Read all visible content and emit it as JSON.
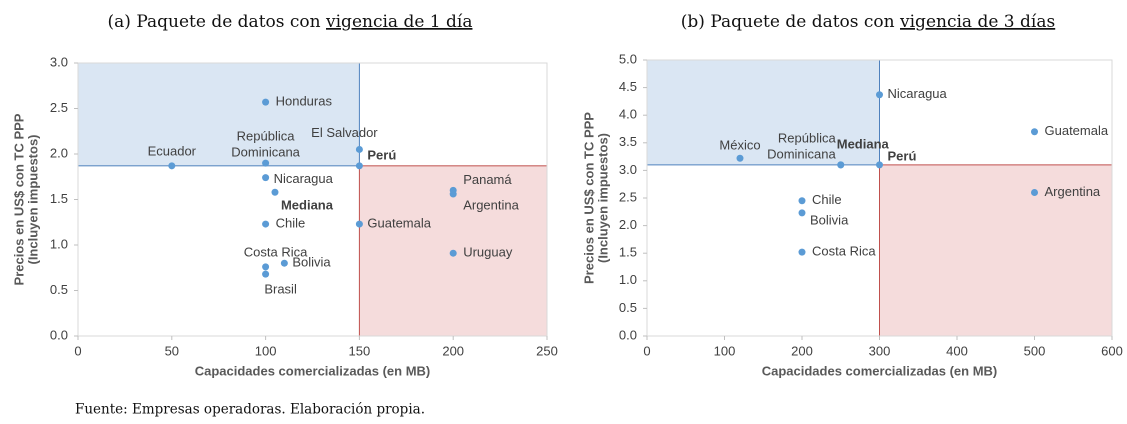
{
  "chart_data": [
    {
      "type": "scatter",
      "title": {
        "text": "(a) Paquete de datos con",
        "underlined": "vigencia de 1 día"
      },
      "xlabel": "Capacidades comercializadas (en MB)",
      "ylabel": [
        "Precios en US$ con TC PPP",
        "(Incluyen impuestos)"
      ],
      "xlim": [
        0,
        250
      ],
      "xticks": [
        0,
        50,
        100,
        150,
        200,
        250
      ],
      "ylim": [
        0,
        3.0
      ],
      "yticks": [
        {
          "value": 0,
          "label": "0.0"
        },
        0.5,
        {
          "value": 1,
          "label": "1.0"
        },
        1.5,
        {
          "value": 2,
          "label": "2.0"
        },
        2.5,
        {
          "value": 3,
          "label": "3.0"
        }
      ],
      "color": "#5b9bd5",
      "regions": [
        {
          "xlim": [
            0,
            150
          ],
          "ylim": [
            1.87,
            3.0
          ],
          "color": "#dae6f3",
          "stroke": "#4f81bd"
        },
        {
          "xlim": [
            150,
            250
          ],
          "ylim": [
            0,
            1.87
          ],
          "color": "#f5dcdc",
          "stroke": "#c0504d"
        }
      ],
      "points": [
        {
          "label": [
            "Ecuador"
          ],
          "x": 50,
          "y": 1.87
        },
        {
          "label": [
            "Honduras"
          ],
          "x": 100,
          "y": 2.57
        },
        {
          "label": [
            "República",
            "Dominicana"
          ],
          "x": 100,
          "y": 1.9
        },
        {
          "label": [
            "Nicaragua"
          ],
          "x": 100,
          "y": 1.74
        },
        {
          "label": [
            "Mediana"
          ],
          "x": 105,
          "y": 1.58,
          "label_color": "#1f77c4"
        },
        {
          "label": [
            "Chile"
          ],
          "x": 100,
          "y": 1.23
        },
        {
          "label": [
            "Costa Rica"
          ],
          "x": 100,
          "y": 0.76
        },
        {
          "label": [
            "Brasil"
          ],
          "x": 100,
          "y": 0.68
        },
        {
          "label": [
            "Bolivia"
          ],
          "x": 110,
          "y": 0.8
        },
        {
          "label": [
            "El Salvador"
          ],
          "x": 150,
          "y": 2.05
        },
        {
          "label": [
            "Perú"
          ],
          "x": 150,
          "y": 1.87,
          "label_color": "#c00000"
        },
        {
          "label": [
            "Guatemala"
          ],
          "x": 150,
          "y": 1.23
        },
        {
          "label": [
            "Panamá"
          ],
          "x": 200,
          "y": 1.6
        },
        {
          "label": [
            "Argentina"
          ],
          "x": 200,
          "y": 1.56
        },
        {
          "label": [
            "Uruguay"
          ],
          "x": 200,
          "y": 0.91
        }
      ]
    },
    {
      "type": "scatter",
      "title": {
        "text": "(b) Paquete de datos con",
        "underlined": "vigencia de 3 días"
      },
      "xlabel": "Capacidades comercializadas (en MB)",
      "ylabel": [
        "Precios en US$ con TC PPP",
        "(Incluyen impuestos)"
      ],
      "xlim": [
        0,
        600
      ],
      "xticks": [
        0,
        100,
        200,
        300,
        400,
        500,
        600
      ],
      "ylim": [
        0,
        5.0
      ],
      "yticks": [
        {
          "value": 0,
          "label": "0.0"
        },
        0.5,
        {
          "value": 1,
          "label": "1.0"
        },
        1.5,
        {
          "value": 2,
          "label": "2.0"
        },
        2.5,
        {
          "value": 3,
          "label": "3.0"
        },
        3.5,
        {
          "value": 4,
          "label": "4.0"
        },
        4.5,
        {
          "value": 5,
          "label": "5.0"
        }
      ],
      "color": "#5b9bd5",
      "regions": [
        {
          "xlim": [
            0,
            300
          ],
          "ylim": [
            3.1,
            5.0
          ],
          "color": "#dae6f3",
          "stroke": "#4f81bd"
        },
        {
          "xlim": [
            300,
            600
          ],
          "ylim": [
            0,
            3.1
          ],
          "color": "#f5dcdc",
          "stroke": "#c0504d"
        }
      ],
      "points": [
        {
          "label": [
            "México"
          ],
          "x": 120,
          "y": 3.22
        },
        {
          "label": [
            "República",
            "Dominicana"
          ],
          "x": 250,
          "y": 3.1
        },
        {
          "label": [
            "Mediana"
          ],
          "x": 250,
          "y": 3.1,
          "label_color": "#1f77c4"
        },
        {
          "label": [
            "Nicaragua"
          ],
          "x": 300,
          "y": 4.37
        },
        {
          "label": [
            "Perú"
          ],
          "x": 300,
          "y": 3.1,
          "label_color": "#c00000"
        },
        {
          "label": [
            "Guatemala"
          ],
          "x": 500,
          "y": 3.7
        },
        {
          "label": [
            "Argentina"
          ],
          "x": 500,
          "y": 2.6
        },
        {
          "label": [
            "Chile"
          ],
          "x": 200,
          "y": 2.45
        },
        {
          "label": [
            "Bolivia"
          ],
          "x": 200,
          "y": 2.23
        },
        {
          "label": [
            "Costa Rica"
          ],
          "x": 200,
          "y": 1.52
        }
      ]
    }
  ],
  "footer": "Fuente: Empresas operadoras. Elaboración propia."
}
